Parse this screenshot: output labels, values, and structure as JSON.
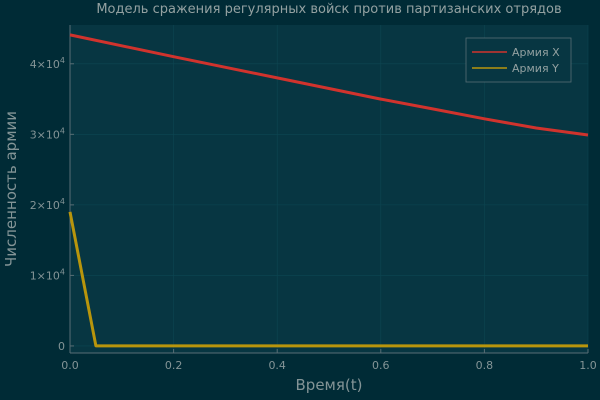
{
  "chart_data": {
    "type": "line",
    "title": "Модель сражения регулярных войск против партизанских отрядов",
    "xlabel": "Время(t)",
    "ylabel": "Численность армии",
    "xlim": [
      0,
      1
    ],
    "ylim": [
      -1000,
      45500
    ],
    "x_ticks": [
      0,
      0.2,
      0.4,
      0.6,
      0.8,
      1
    ],
    "x_tick_labels": [
      "0.0",
      "0.2",
      "0.4",
      "0.6",
      "0.8",
      "1.0"
    ],
    "y_ticks": [
      {
        "value": 0,
        "base": "0",
        "exp": ""
      },
      {
        "value": 10000,
        "base": "1×10",
        "exp": "4"
      },
      {
        "value": 20000,
        "base": "2×10",
        "exp": "4"
      },
      {
        "value": 30000,
        "base": "3×10",
        "exp": "4"
      },
      {
        "value": 40000,
        "base": "4×10",
        "exp": "4"
      }
    ],
    "grid": true,
    "legend_position": "top-right",
    "series": [
      {
        "name": "Армия X",
        "color": "#d0332d",
        "x": [
          0,
          0.1,
          0.2,
          0.3,
          0.4,
          0.5,
          0.6,
          0.7,
          0.8,
          0.9,
          1.0
        ],
        "y": [
          44100,
          42550,
          41000,
          39500,
          38000,
          36500,
          35000,
          33600,
          32200,
          30900,
          29900
        ]
      },
      {
        "name": "Армия Y",
        "color": "#b8950c",
        "x": [
          0,
          0.05,
          0.1,
          0.2,
          0.4,
          0.6,
          0.8,
          1.0
        ],
        "y": [
          19000,
          0,
          0,
          0,
          0,
          0,
          0,
          0
        ]
      }
    ]
  },
  "colors": {
    "background": "#002b36",
    "plot_background": "#073642",
    "axis": "#586e75",
    "grid": "#0d4652"
  }
}
